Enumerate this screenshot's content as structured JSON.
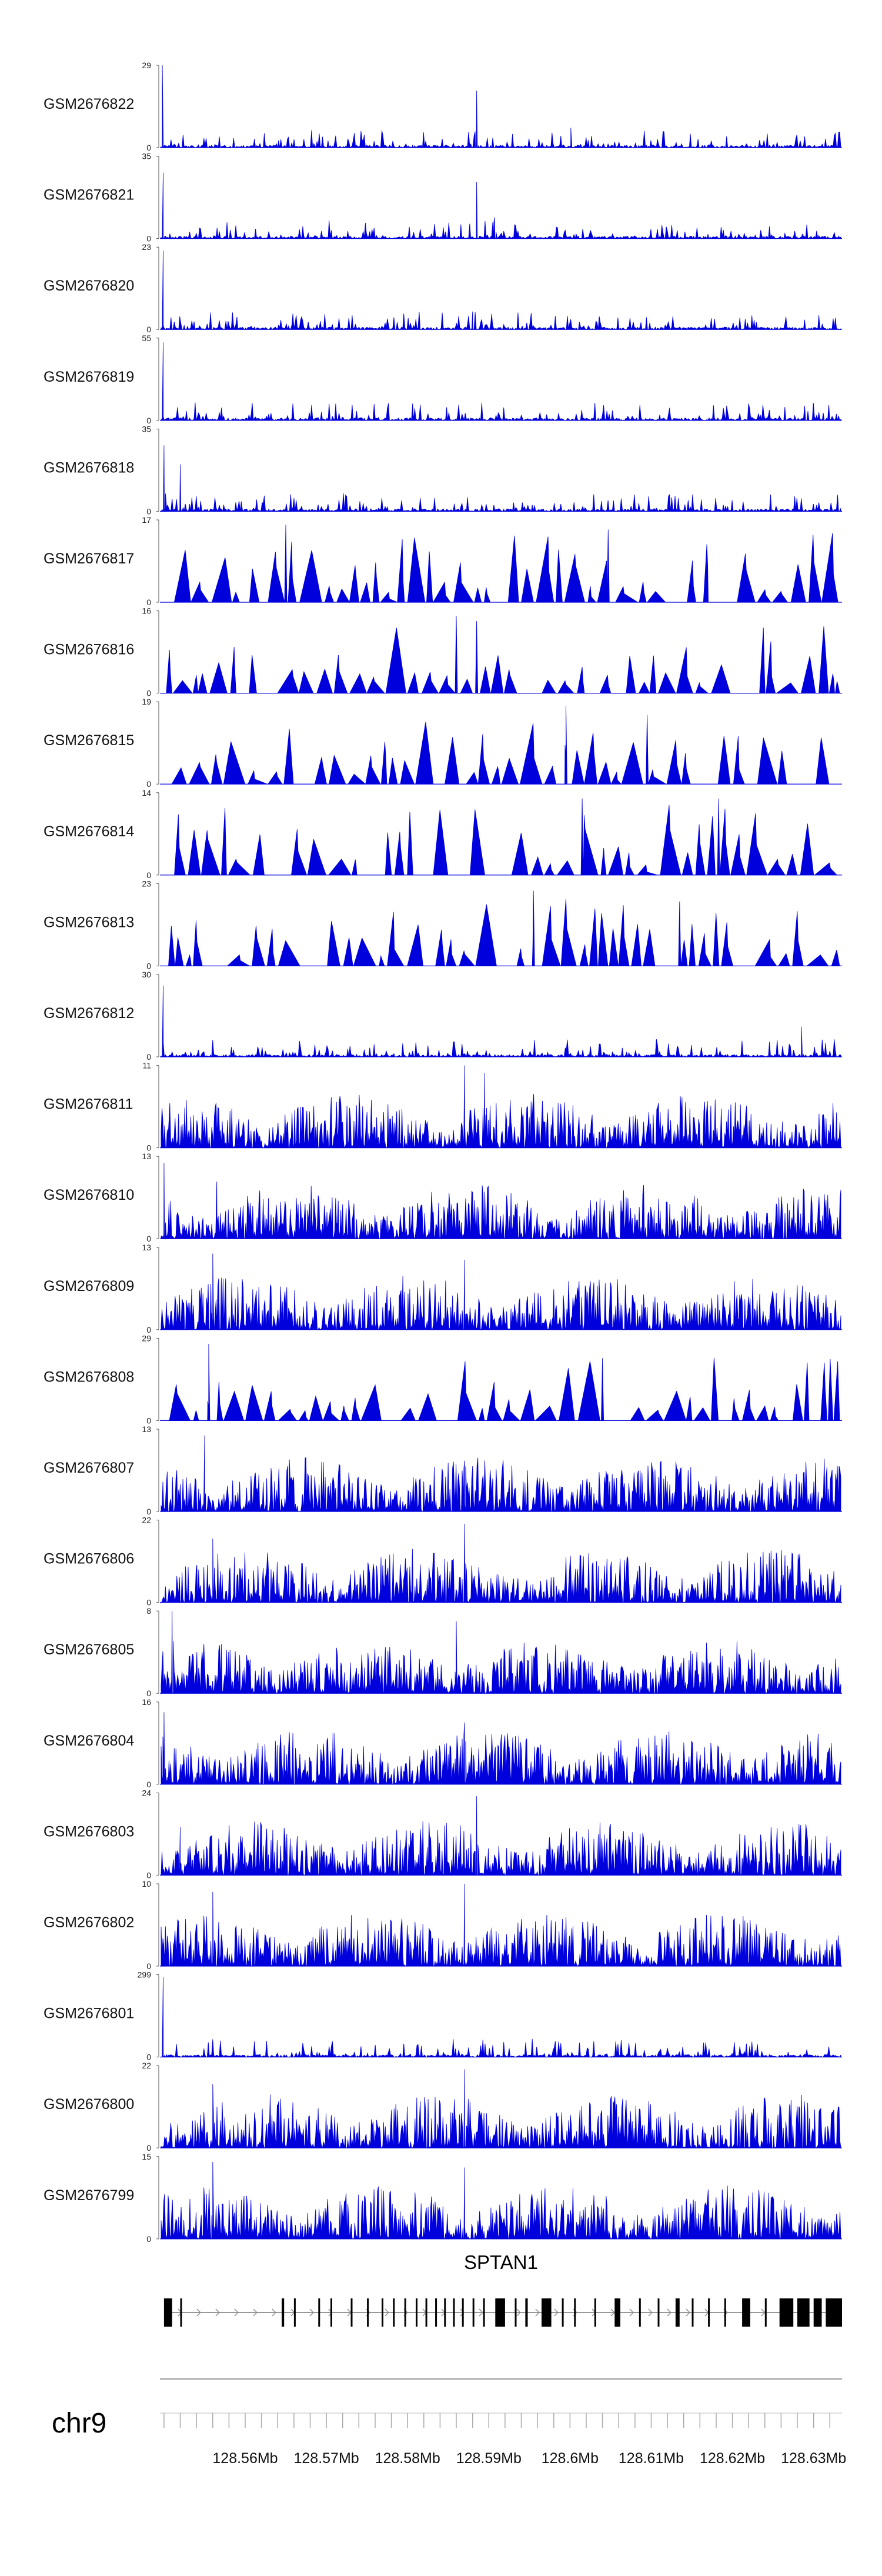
{
  "chart_data": {
    "type": "area",
    "title": "",
    "xlabel": "",
    "ylabel": "",
    "track_color": "#0000dd",
    "xlim": [
      128.5495,
      128.6335
    ],
    "tracks": [
      {
        "name": "GSM2676822",
        "ymax": 29,
        "pattern": "p22",
        "peaks": [
          [
            128.5498,
            29
          ],
          [
            128.5885,
            20
          ],
          [
            128.6001,
            7
          ]
        ]
      },
      {
        "name": "GSM2676821",
        "ymax": 35,
        "pattern": "p21",
        "peaks": [
          [
            128.5499,
            28
          ],
          [
            128.5885,
            24
          ],
          [
            128.5907,
            9
          ]
        ]
      },
      {
        "name": "GSM2676820",
        "ymax": 23,
        "pattern": "p20",
        "peaks": [
          [
            128.5499,
            22
          ],
          [
            128.588,
            5
          ]
        ]
      },
      {
        "name": "GSM2676819",
        "ymax": 55,
        "pattern": "p19",
        "peaks": [
          [
            128.5499,
            52
          ]
        ]
      },
      {
        "name": "GSM2676818",
        "ymax": 35,
        "pattern": "p18",
        "peaks": [
          [
            128.55,
            28
          ],
          [
            128.552,
            20
          ]
        ]
      },
      {
        "name": "GSM2676817",
        "ymax": 17,
        "pattern": "s17",
        "peaks": [
          [
            128.565,
            16
          ],
          [
            128.6047,
            15
          ]
        ]
      },
      {
        "name": "GSM2676816",
        "ymax": 16,
        "pattern": "s16",
        "peaks": [
          [
            128.586,
            15
          ],
          [
            128.5885,
            14
          ]
        ]
      },
      {
        "name": "GSM2676815",
        "ymax": 19,
        "pattern": "s15",
        "peaks": [
          [
            128.5995,
            18
          ],
          [
            128.6095,
            16
          ]
        ]
      },
      {
        "name": "GSM2676814",
        "ymax": 14,
        "pattern": "s14",
        "peaks": [
          [
            128.6015,
            13
          ],
          [
            128.6183,
            13
          ]
        ]
      },
      {
        "name": "GSM2676813",
        "ymax": 23,
        "pattern": "s13",
        "peaks": [
          [
            128.5955,
            21
          ],
          [
            128.6135,
            18
          ]
        ]
      },
      {
        "name": "GSM2676812",
        "ymax": 30,
        "pattern": "p12",
        "peaks": [
          [
            128.5499,
            26
          ],
          [
            128.6285,
            11
          ]
        ]
      },
      {
        "name": "GSM2676811",
        "ymax": 11,
        "pattern": "d11",
        "peaks": [
          [
            128.587,
            11
          ],
          [
            128.5895,
            10
          ]
        ]
      },
      {
        "name": "GSM2676810",
        "ymax": 13,
        "pattern": "d10",
        "peaks": [
          [
            128.55,
            12
          ],
          [
            128.5565,
            9
          ]
        ]
      },
      {
        "name": "GSM2676809",
        "ymax": 13,
        "pattern": "d09",
        "peaks": [
          [
            128.556,
            12
          ],
          [
            128.587,
            11
          ]
        ]
      },
      {
        "name": "GSM2676808",
        "ymax": 29,
        "pattern": "s08",
        "peaks": [
          [
            128.5555,
            27
          ],
          [
            128.604,
            22
          ]
        ]
      },
      {
        "name": "GSM2676807",
        "ymax": 13,
        "pattern": "d07",
        "peaks": [
          [
            128.555,
            12
          ],
          [
            128.587,
            8
          ]
        ]
      },
      {
        "name": "GSM2676806",
        "ymax": 22,
        "pattern": "d06",
        "peaks": [
          [
            128.587,
            21
          ],
          [
            128.556,
            17
          ]
        ]
      },
      {
        "name": "GSM2676805",
        "ymax": 8,
        "pattern": "d05",
        "peaks": [
          [
            128.551,
            8
          ],
          [
            128.586,
            7
          ]
        ]
      },
      {
        "name": "GSM2676804",
        "ymax": 16,
        "pattern": "d04",
        "peaks": [
          [
            128.55,
            14
          ],
          [
            128.587,
            12
          ]
        ]
      },
      {
        "name": "GSM2676803",
        "ymax": 24,
        "pattern": "d03",
        "peaks": [
          [
            128.5885,
            23
          ],
          [
            128.552,
            14
          ]
        ]
      },
      {
        "name": "GSM2676802",
        "ymax": 10,
        "pattern": "d02",
        "peaks": [
          [
            128.587,
            10
          ],
          [
            128.556,
            9
          ]
        ]
      },
      {
        "name": "GSM2676801",
        "ymax": 299,
        "pattern": "p01",
        "peaks": [
          [
            128.5499,
            290
          ]
        ]
      },
      {
        "name": "GSM2676800",
        "ymax": 22,
        "pattern": "d00",
        "peaks": [
          [
            128.587,
            21
          ],
          [
            128.556,
            17
          ]
        ]
      },
      {
        "name": "GSM2676799",
        "ymax": 15,
        "pattern": "d99",
        "peaks": [
          [
            128.556,
            14
          ],
          [
            128.587,
            13
          ]
        ]
      }
    ],
    "gene": {
      "name": "SPTAN1",
      "strand": "+",
      "start": 128.55,
      "end": 128.6335,
      "exons": [
        [
          128.55,
          128.551
        ],
        [
          128.552,
          128.5522
        ],
        [
          128.5645,
          128.5648
        ],
        [
          128.566,
          128.5662
        ],
        [
          128.569,
          128.5692
        ],
        [
          128.5705,
          128.5707
        ],
        [
          128.573,
          128.5732
        ],
        [
          128.575,
          128.5752
        ],
        [
          128.5768,
          128.577
        ],
        [
          128.5782,
          128.5784
        ],
        [
          128.5796,
          128.5798
        ],
        [
          128.581,
          128.5812
        ],
        [
          128.5822,
          128.5824
        ],
        [
          128.5834,
          128.5836
        ],
        [
          128.5845,
          128.5847
        ],
        [
          128.5856,
          128.5858
        ],
        [
          128.5867,
          128.5869
        ],
        [
          128.588,
          128.5882
        ],
        [
          128.5893,
          128.5895
        ],
        [
          128.5908,
          128.592
        ],
        [
          128.5932,
          128.5934
        ],
        [
          128.5945,
          128.5948
        ],
        [
          128.5965,
          128.5977
        ],
        [
          128.599,
          128.5992
        ],
        [
          128.6005,
          128.6007
        ],
        [
          128.603,
          128.6032
        ],
        [
          128.6055,
          128.6062
        ],
        [
          128.6085,
          128.6087
        ],
        [
          128.6108,
          128.611
        ],
        [
          128.613,
          128.6135
        ],
        [
          128.615,
          128.6152
        ],
        [
          128.617,
          128.6172
        ],
        [
          128.619,
          128.6192
        ],
        [
          128.6212,
          128.6222
        ],
        [
          128.624,
          128.6242
        ],
        [
          128.6258,
          128.6275
        ],
        [
          128.628,
          128.6295
        ],
        [
          128.63,
          128.631
        ],
        [
          128.6315,
          128.6335
        ]
      ]
    },
    "chromosome": "chr9",
    "x_ticks": {
      "major_step": 0.01,
      "minor_step": 0.002,
      "labels": [
        {
          "value": 128.56,
          "label": "128.56Mb"
        },
        {
          "value": 128.57,
          "label": "128.57Mb"
        },
        {
          "value": 128.58,
          "label": "128.58Mb"
        },
        {
          "value": 128.59,
          "label": "128.59Mb"
        },
        {
          "value": 128.6,
          "label": "128.6Mb"
        },
        {
          "value": 128.61,
          "label": "128.61Mb"
        },
        {
          "value": 128.62,
          "label": "128.62Mb"
        },
        {
          "value": 128.63,
          "label": "128.63Mb"
        }
      ]
    }
  }
}
